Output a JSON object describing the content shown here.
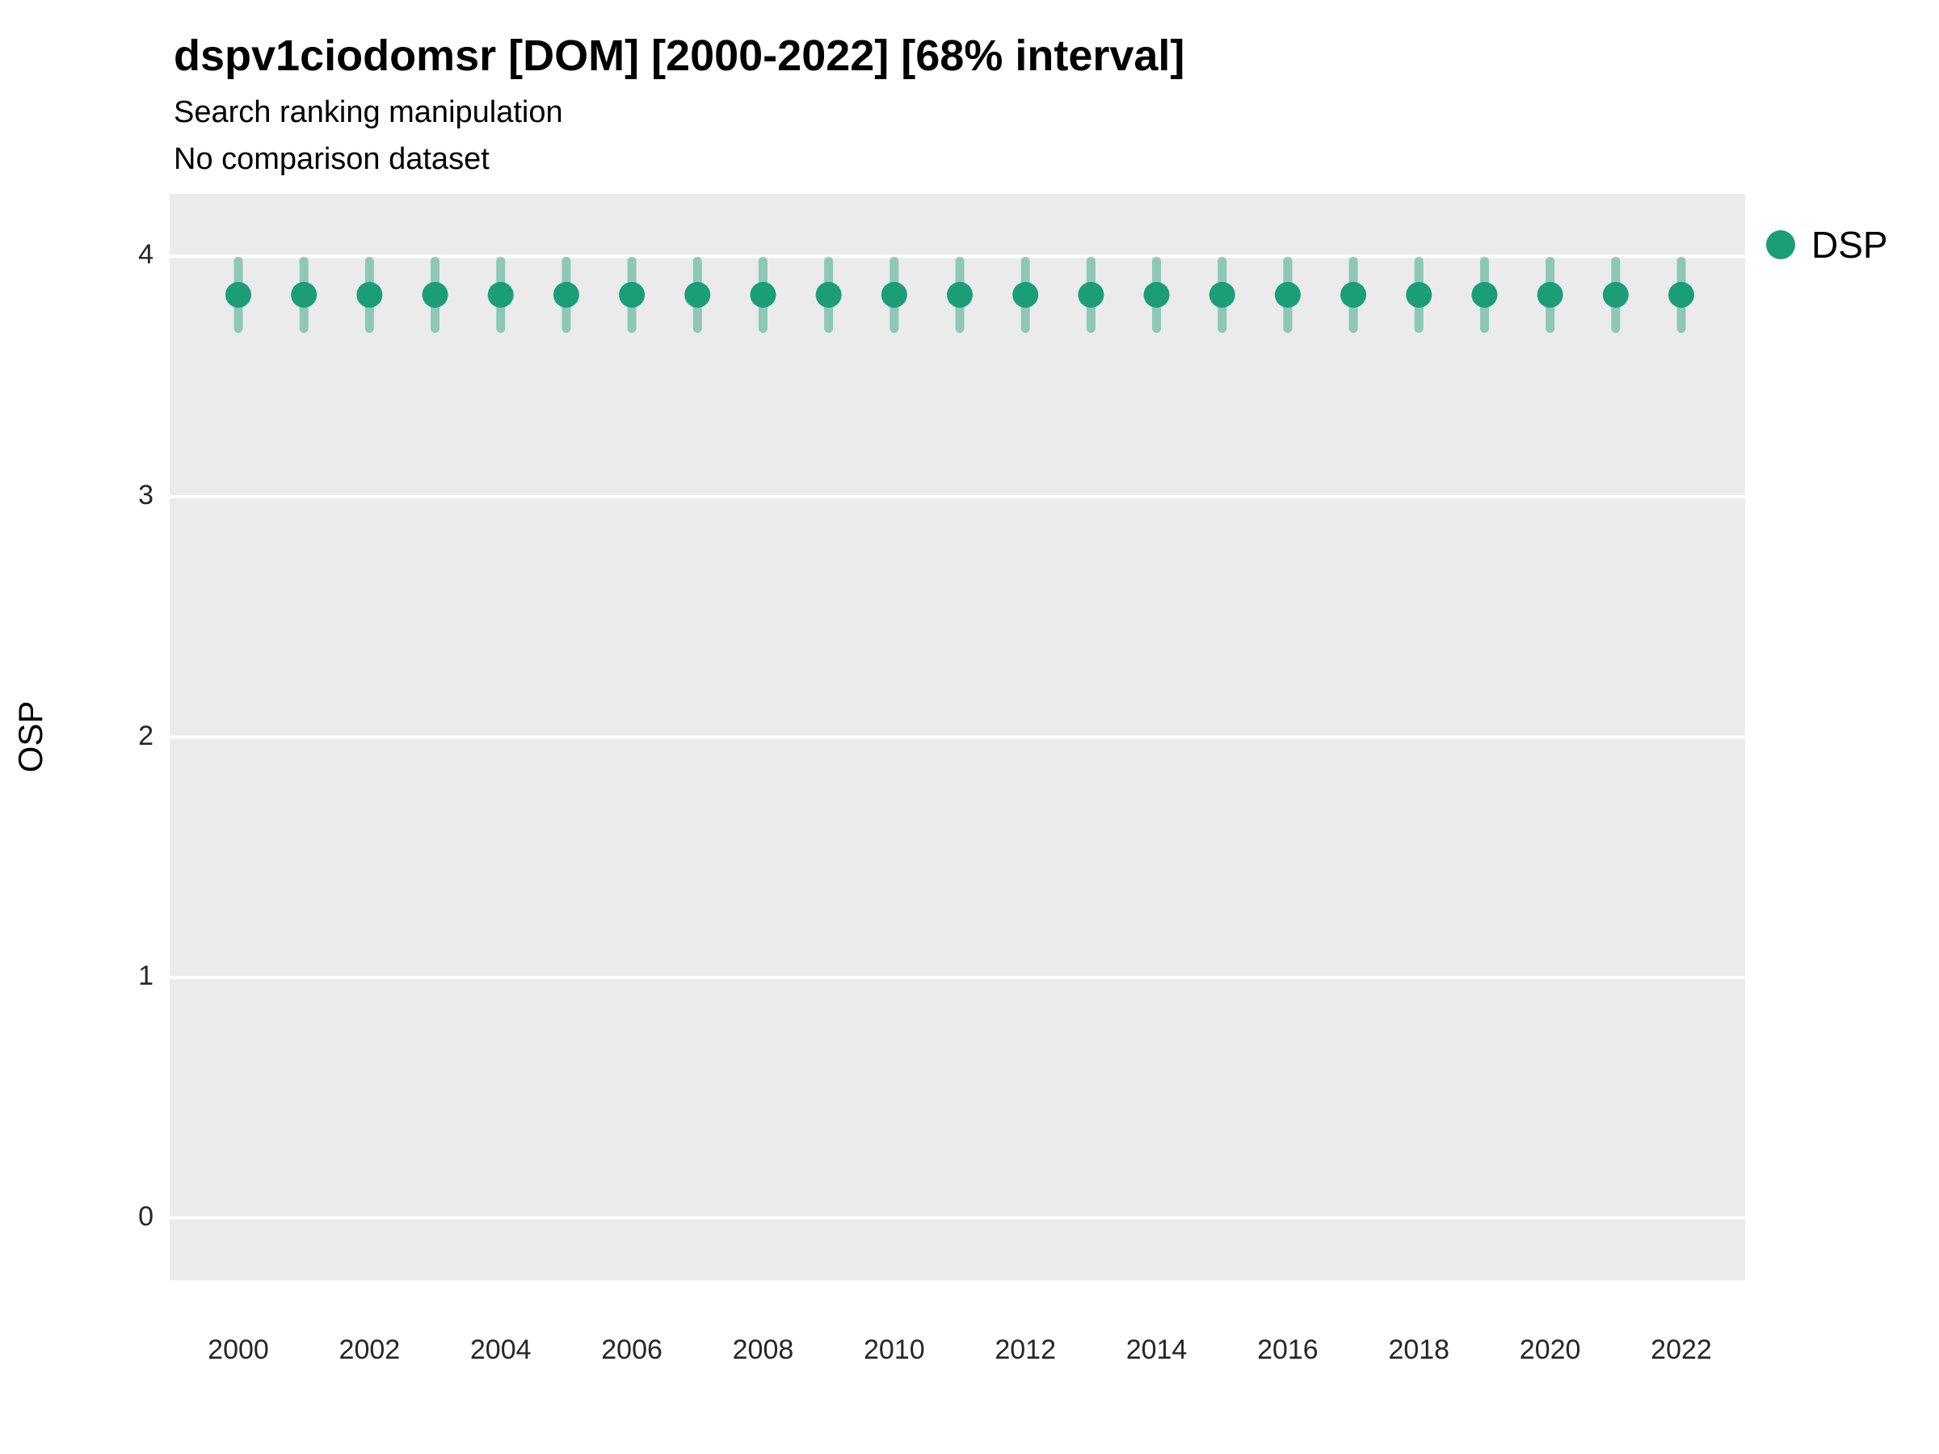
{
  "chart_data": {
    "type": "pointrange",
    "title": "dspv1ciodomsr [DOM] [2000-2022] [68% interval]",
    "subtitle": "Search ranking manipulation",
    "subtitle2": "No comparison dataset",
    "ylabel": "OSP",
    "xlabel": "",
    "ylim": [
      -0.26,
      4.26
    ],
    "yticks": [
      0,
      1,
      2,
      3,
      4
    ],
    "xticks": [
      2000,
      2002,
      2004,
      2006,
      2008,
      2010,
      2012,
      2014,
      2016,
      2018,
      2020,
      2022
    ],
    "x": [
      2000,
      2001,
      2002,
      2003,
      2004,
      2005,
      2006,
      2007,
      2008,
      2009,
      2010,
      2011,
      2012,
      2013,
      2014,
      2015,
      2016,
      2017,
      2018,
      2019,
      2020,
      2021,
      2022
    ],
    "series": [
      {
        "name": "DSP",
        "color": "#1b9e77",
        "values": [
          3.84,
          3.84,
          3.84,
          3.84,
          3.84,
          3.84,
          3.84,
          3.84,
          3.84,
          3.84,
          3.84,
          3.84,
          3.84,
          3.84,
          3.84,
          3.84,
          3.84,
          3.84,
          3.84,
          3.84,
          3.84,
          3.84,
          3.84
        ],
        "lower": [
          3.7,
          3.7,
          3.7,
          3.7,
          3.7,
          3.7,
          3.7,
          3.7,
          3.7,
          3.7,
          3.7,
          3.7,
          3.7,
          3.7,
          3.7,
          3.7,
          3.7,
          3.7,
          3.7,
          3.7,
          3.7,
          3.7,
          3.7
        ],
        "upper": [
          3.98,
          3.98,
          3.98,
          3.98,
          3.98,
          3.98,
          3.98,
          3.98,
          3.98,
          3.98,
          3.98,
          3.98,
          3.98,
          3.98,
          3.98,
          3.98,
          3.98,
          3.98,
          3.98,
          3.98,
          3.98,
          3.98,
          3.98
        ]
      }
    ],
    "legend_position": "right",
    "panel_background": "#EBEBEB",
    "gridline_color": "#FFFFFF",
    "grid": "horizontal-major-only"
  }
}
